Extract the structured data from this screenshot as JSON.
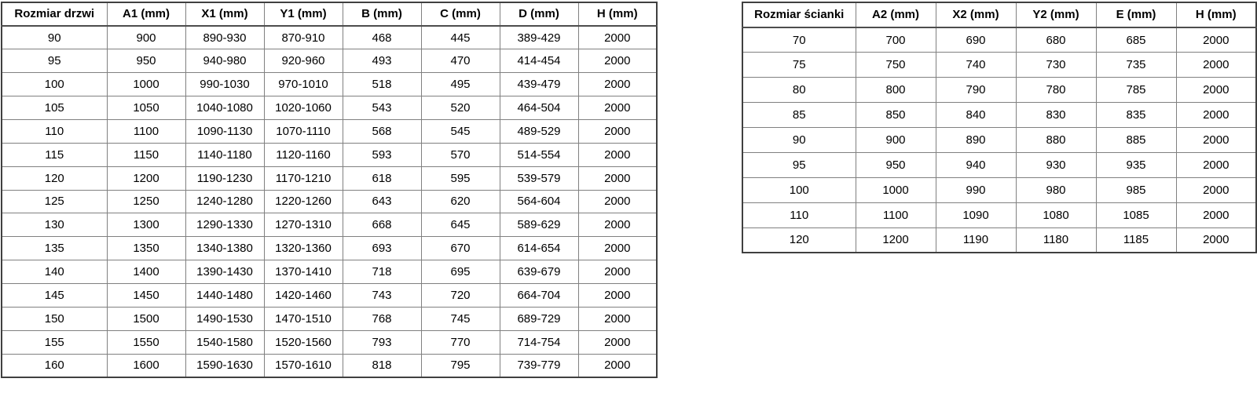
{
  "colors": {
    "outer_border": "#404040",
    "inner_border": "#808080",
    "text": "#000000",
    "background": "#ffffff"
  },
  "left_table": {
    "headers": [
      "Rozmiar drzwi",
      "A1 (mm)",
      "X1 (mm)",
      "Y1 (mm)",
      "B (mm)",
      "C (mm)",
      "D (mm)",
      "H (mm)"
    ],
    "rows": [
      [
        "90",
        "900",
        "890-930",
        "870-910",
        "468",
        "445",
        "389-429",
        "2000"
      ],
      [
        "95",
        "950",
        "940-980",
        "920-960",
        "493",
        "470",
        "414-454",
        "2000"
      ],
      [
        "100",
        "1000",
        "990-1030",
        "970-1010",
        "518",
        "495",
        "439-479",
        "2000"
      ],
      [
        "105",
        "1050",
        "1040-1080",
        "1020-1060",
        "543",
        "520",
        "464-504",
        "2000"
      ],
      [
        "110",
        "1100",
        "1090-1130",
        "1070-1110",
        "568",
        "545",
        "489-529",
        "2000"
      ],
      [
        "115",
        "1150",
        "1140-1180",
        "1120-1160",
        "593",
        "570",
        "514-554",
        "2000"
      ],
      [
        "120",
        "1200",
        "1190-1230",
        "1170-1210",
        "618",
        "595",
        "539-579",
        "2000"
      ],
      [
        "125",
        "1250",
        "1240-1280",
        "1220-1260",
        "643",
        "620",
        "564-604",
        "2000"
      ],
      [
        "130",
        "1300",
        "1290-1330",
        "1270-1310",
        "668",
        "645",
        "589-629",
        "2000"
      ],
      [
        "135",
        "1350",
        "1340-1380",
        "1320-1360",
        "693",
        "670",
        "614-654",
        "2000"
      ],
      [
        "140",
        "1400",
        "1390-1430",
        "1370-1410",
        "718",
        "695",
        "639-679",
        "2000"
      ],
      [
        "145",
        "1450",
        "1440-1480",
        "1420-1460",
        "743",
        "720",
        "664-704",
        "2000"
      ],
      [
        "150",
        "1500",
        "1490-1530",
        "1470-1510",
        "768",
        "745",
        "689-729",
        "2000"
      ],
      [
        "155",
        "1550",
        "1540-1580",
        "1520-1560",
        "793",
        "770",
        "714-754",
        "2000"
      ],
      [
        "160",
        "1600",
        "1590-1630",
        "1570-1610",
        "818",
        "795",
        "739-779",
        "2000"
      ]
    ]
  },
  "right_table": {
    "headers": [
      "Rozmiar ścianki",
      "A2 (mm)",
      "X2 (mm)",
      "Y2 (mm)",
      "E (mm)",
      "H (mm)"
    ],
    "rows": [
      [
        "70",
        "700",
        "690",
        "680",
        "685",
        "2000"
      ],
      [
        "75",
        "750",
        "740",
        "730",
        "735",
        "2000"
      ],
      [
        "80",
        "800",
        "790",
        "780",
        "785",
        "2000"
      ],
      [
        "85",
        "850",
        "840",
        "830",
        "835",
        "2000"
      ],
      [
        "90",
        "900",
        "890",
        "880",
        "885",
        "2000"
      ],
      [
        "95",
        "950",
        "940",
        "930",
        "935",
        "2000"
      ],
      [
        "100",
        "1000",
        "990",
        "980",
        "985",
        "2000"
      ],
      [
        "110",
        "1100",
        "1090",
        "1080",
        "1085",
        "2000"
      ],
      [
        "120",
        "1200",
        "1190",
        "1180",
        "1185",
        "2000"
      ]
    ]
  }
}
